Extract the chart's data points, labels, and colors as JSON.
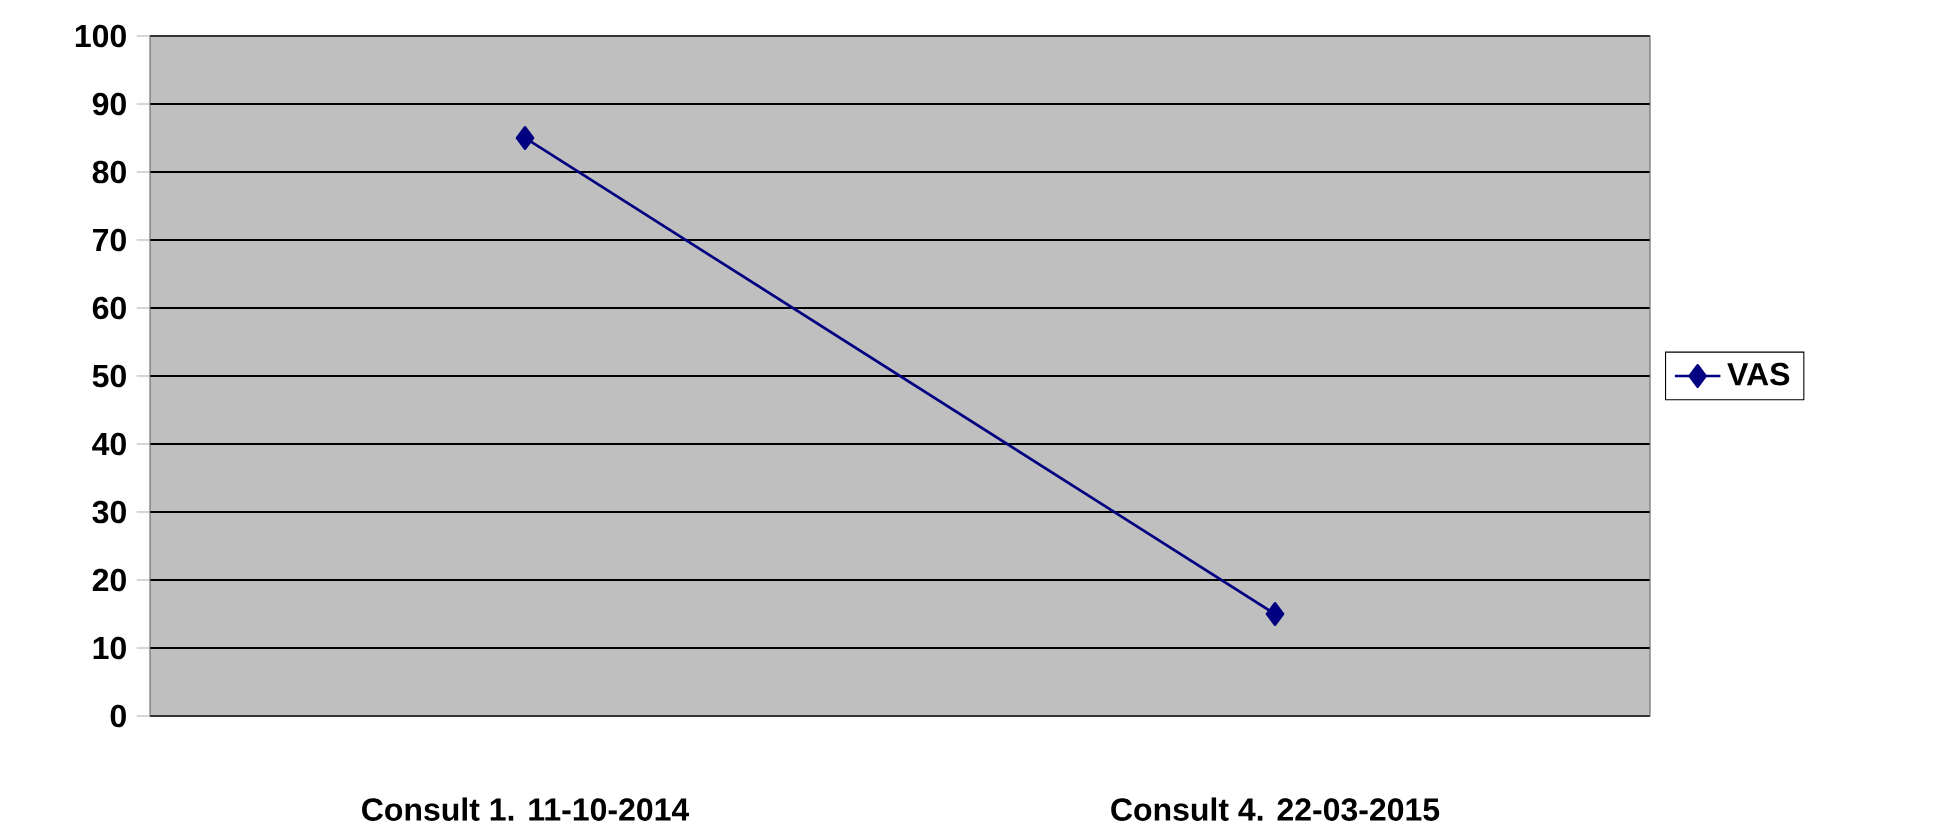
{
  "chart_data": {
    "type": "line",
    "categories": [
      "Consult 1. 11-10-2014",
      "Consult 4. 22-03-2015"
    ],
    "series": [
      {
        "name": "VAS",
        "color": "#000080",
        "values": [
          85,
          15
        ]
      }
    ],
    "ylim": [
      0,
      100
    ],
    "yticks": [
      0,
      10,
      20,
      30,
      40,
      50,
      60,
      70,
      80,
      90,
      100
    ],
    "grid": "y",
    "legend": "right",
    "marker": "diamond",
    "line_style": "solid"
  }
}
